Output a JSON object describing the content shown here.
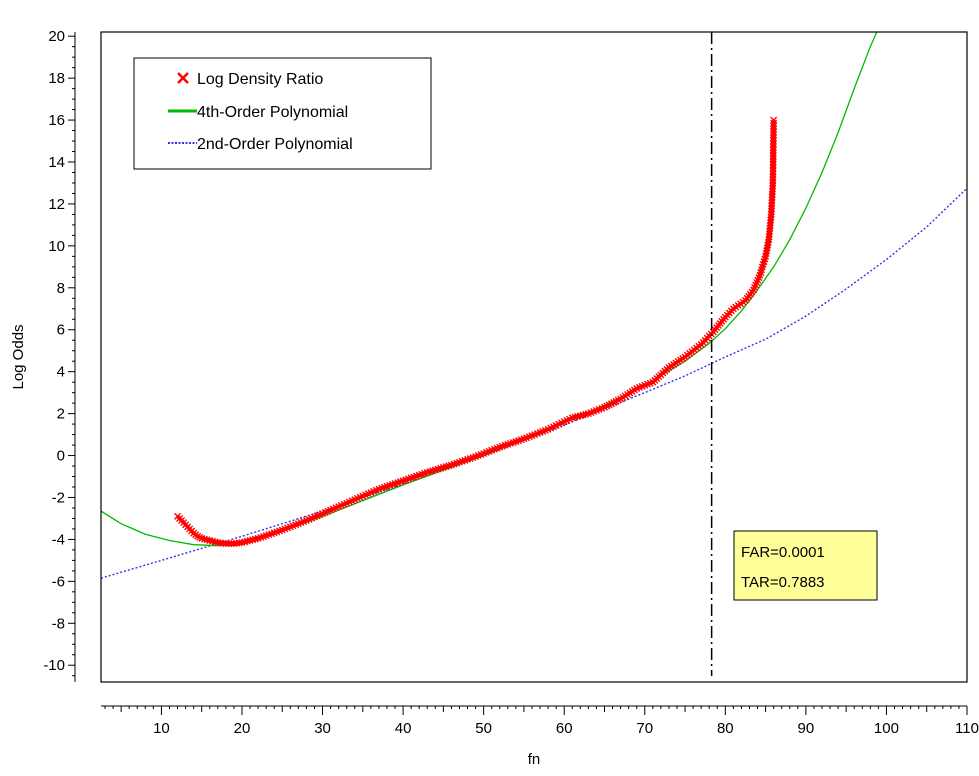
{
  "chart_data": {
    "type": "line",
    "title": "",
    "xlabel": "fn",
    "ylabel": "Log Odds",
    "xlim": [
      2.5,
      110
    ],
    "ylim": [
      -10.8,
      20.2
    ],
    "x_ticks": [
      10,
      20,
      30,
      40,
      50,
      60,
      70,
      80,
      90,
      100,
      110
    ],
    "y_ticks": [
      -10,
      -8,
      -6,
      -4,
      -2,
      0,
      2,
      4,
      6,
      8,
      10,
      12,
      14,
      16,
      18,
      20
    ],
    "grid": false,
    "legend_position": "top-left",
    "threshold_x": 78.3,
    "annotation": [
      "FAR=0.0001",
      "TAR=0.7883"
    ],
    "annotation_color": "#ffff99",
    "series": [
      {
        "name": "Log Density Ratio",
        "style": "x-markers",
        "color": "#ff0000",
        "x": [
          12.0,
          12.5,
          13.0,
          13.5,
          14.0,
          14.5,
          15.0,
          16.0,
          17.0,
          18.0,
          19.0,
          20.0,
          22.0,
          25.0,
          28.0,
          31.0,
          34.0,
          37.0,
          40.0,
          43.0,
          46.0,
          49.0,
          52.0,
          55.0,
          58.0,
          61.0,
          63.0,
          65.0,
          67.0,
          69.0,
          71.0,
          73.0,
          75.0,
          77.0,
          78.5,
          80.0,
          81.0,
          82.5,
          83.5,
          84.3,
          85.0,
          85.4,
          85.7,
          85.9,
          86.0
        ],
        "y": [
          -2.9,
          -3.1,
          -3.3,
          -3.5,
          -3.7,
          -3.85,
          -3.95,
          -4.05,
          -4.15,
          -4.2,
          -4.2,
          -4.15,
          -3.95,
          -3.55,
          -3.1,
          -2.6,
          -2.1,
          -1.6,
          -1.2,
          -0.8,
          -0.45,
          -0.05,
          0.4,
          0.8,
          1.25,
          1.8,
          2.0,
          2.3,
          2.7,
          3.2,
          3.5,
          4.2,
          4.7,
          5.3,
          5.9,
          6.6,
          7.0,
          7.4,
          7.9,
          8.6,
          9.5,
          10.3,
          11.5,
          13.0,
          16.0
        ]
      },
      {
        "name": "4th-Order Polynomial",
        "style": "solid",
        "color": "#00bb00",
        "x": [
          2.5,
          5,
          8,
          11,
          14,
          17,
          20,
          25,
          30,
          35,
          40,
          45,
          50,
          55,
          60,
          65,
          70,
          75,
          78,
          80,
          82,
          84,
          86,
          88,
          90,
          92,
          94,
          96,
          98,
          98.8
        ],
        "y": [
          -2.65,
          -3.25,
          -3.75,
          -4.05,
          -4.25,
          -4.3,
          -4.15,
          -3.6,
          -2.9,
          -2.15,
          -1.4,
          -0.7,
          0.0,
          0.75,
          1.55,
          2.4,
          3.35,
          4.5,
          5.35,
          6.05,
          6.9,
          7.9,
          9.0,
          10.3,
          11.8,
          13.5,
          15.4,
          17.5,
          19.5,
          20.2
        ]
      },
      {
        "name": "2nd-Order Polynomial",
        "style": "dotted",
        "color": "#3333ee",
        "x": [
          2.5,
          10,
          20,
          30,
          40,
          50,
          60,
          70,
          75,
          80,
          85,
          90,
          95,
          100,
          105,
          110
        ],
        "y": [
          -5.85,
          -5.0,
          -3.85,
          -2.65,
          -1.35,
          0.0,
          1.45,
          3.0,
          3.8,
          4.7,
          5.55,
          6.65,
          7.95,
          9.35,
          10.9,
          12.75
        ]
      }
    ]
  }
}
